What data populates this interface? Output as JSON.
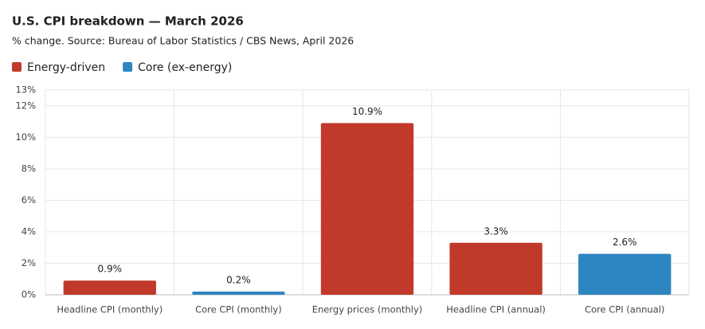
{
  "chart_data": {
    "type": "bar",
    "title": "U.S. CPI breakdown — March 2026",
    "subtitle": "% change. Source: Bureau of Labor Statistics / CBS News, April 2026",
    "categories": [
      "Headline CPI (monthly)",
      "Core CPI (monthly)",
      "Energy prices (monthly)",
      "Headline CPI (annual)",
      "Core CPI (annual)"
    ],
    "series": [
      {
        "name": "Energy-driven",
        "color": "#c0392b",
        "values": [
          0.9,
          null,
          10.9,
          3.3,
          null
        ],
        "value_labels": [
          "0.9%",
          null,
          "10.9%",
          "3.3%",
          null
        ]
      },
      {
        "name": "Core (ex-energy)",
        "color": "#2e86c1",
        "values": [
          null,
          0.2,
          null,
          null,
          2.6
        ],
        "value_labels": [
          null,
          "0.2%",
          null,
          null,
          "2.6%"
        ]
      }
    ],
    "ylim": [
      0,
      13
    ],
    "yticks": [
      {
        "value": 0,
        "label": "0%"
      },
      {
        "value": 2,
        "label": "2%"
      },
      {
        "value": 4,
        "label": "4%"
      },
      {
        "value": 6,
        "label": "6%"
      },
      {
        "value": 8,
        "label": "8%"
      },
      {
        "value": 10,
        "label": "10%"
      },
      {
        "value": 12,
        "label": "12%"
      },
      {
        "value": 13,
        "label": "13%"
      }
    ],
    "grid": true
  }
}
